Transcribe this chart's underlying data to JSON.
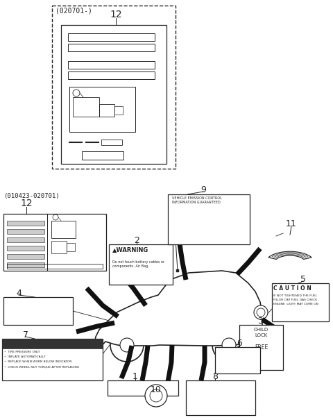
{
  "bg_color": "#ffffff",
  "lc": "#222222",
  "fig_w": 4.8,
  "fig_h": 6.05,
  "dpi": 100,
  "label12_top_note": "(020701-)",
  "label12_top_num": "12",
  "label12_bot_note": "(010423-020701)",
  "label12_bot_num": "12",
  "num1": "1",
  "num2": "2",
  "num3": "3",
  "num4": "4",
  "num5": "5",
  "num6": "6",
  "num7": "7",
  "num8": "8",
  "num9": "9",
  "num10": "10",
  "num11": "11"
}
